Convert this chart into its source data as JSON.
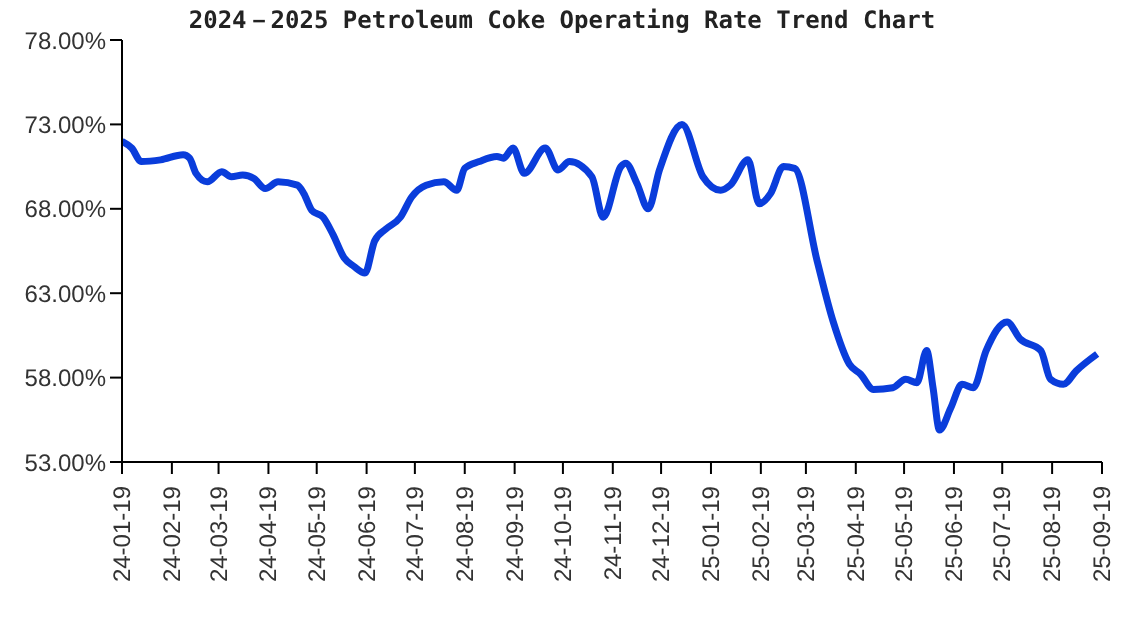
{
  "chart_data": {
    "type": "line",
    "title": "2024－2025 Petroleum Coke Operating Rate Trend Chart",
    "x": [
      "2024-01-19",
      "2024-01-25",
      "2024-01-31",
      "2024-02-12",
      "2024-02-26",
      "2024-03-01",
      "2024-03-05",
      "2024-03-12",
      "2024-03-21",
      "2024-03-27",
      "2024-04-03",
      "2024-04-10",
      "2024-04-17",
      "2024-04-25",
      "2024-05-07",
      "2024-05-11",
      "2024-05-16",
      "2024-05-23",
      "2024-05-29",
      "2024-06-05",
      "2024-06-11",
      "2024-06-18",
      "2024-06-24",
      "2024-07-01",
      "2024-07-10",
      "2024-07-17",
      "2024-07-26",
      "2024-08-06",
      "2024-08-14",
      "2024-08-19",
      "2024-08-28",
      "2024-09-08",
      "2024-09-12",
      "2024-09-18",
      "2024-09-25",
      "2024-10-08",
      "2024-10-16",
      "2024-10-23",
      "2024-11-06",
      "2024-11-13",
      "2024-11-24",
      "2024-11-27",
      "2024-12-04",
      "2024-12-11",
      "2024-12-18",
      "2025-01-01",
      "2025-01-14",
      "2025-01-25",
      "2025-01-31",
      "2025-02-11",
      "2025-02-18",
      "2025-02-25",
      "2025-03-05",
      "2025-03-12",
      "2025-03-26",
      "2025-04-05",
      "2025-04-15",
      "2025-04-22",
      "2025-04-30",
      "2025-05-12",
      "2025-05-20",
      "2025-05-27",
      "2025-06-02",
      "2025-06-06",
      "2025-06-10",
      "2025-06-17",
      "2025-06-24",
      "2025-07-01",
      "2025-07-09",
      "2025-07-22",
      "2025-07-30",
      "2025-08-12",
      "2025-08-18",
      "2025-08-26",
      "2025-09-03",
      "2025-09-16"
    ],
    "series": [
      {
        "color": "#0a3ddb",
        "values": [
          72.0,
          71.6,
          70.8,
          70.9,
          71.2,
          71.0,
          70.1,
          69.6,
          70.2,
          69.9,
          70.0,
          69.8,
          69.2,
          69.6,
          69.4,
          68.9,
          67.9,
          67.5,
          66.5,
          65.1,
          64.6,
          64.2,
          66.1,
          66.8,
          67.5,
          68.7,
          69.4,
          69.6,
          69.1,
          70.4,
          70.8,
          71.1,
          71.0,
          71.6,
          70.1,
          71.6,
          70.3,
          70.8,
          69.9,
          67.5,
          70.5,
          70.7,
          69.5,
          68.0,
          70.3,
          73.0,
          69.9,
          69.1,
          69.4,
          70.9,
          68.3,
          68.9,
          70.5,
          70.4,
          64.9,
          61.3,
          58.8,
          58.2,
          57.3,
          57.4,
          57.9,
          57.7,
          59.6,
          57.4,
          54.9,
          56.2,
          57.6,
          57.4,
          59.6,
          61.3,
          60.3,
          59.6,
          57.9,
          57.6,
          58.4,
          59.4
        ]
      }
    ],
    "xlim": [
      "2024-01-19",
      "2025-09-19"
    ],
    "xticks": [
      {
        "value": "2024-01-19",
        "label": "24-01-19"
      },
      {
        "value": "2024-02-19",
        "label": "24-02-19"
      },
      {
        "value": "2024-03-19",
        "label": "24-03-19"
      },
      {
        "value": "2024-04-19",
        "label": "24-04-19"
      },
      {
        "value": "2024-05-19",
        "label": "24-05-19"
      },
      {
        "value": "2024-06-19",
        "label": "24-06-19"
      },
      {
        "value": "2024-07-19",
        "label": "24-07-19"
      },
      {
        "value": "2024-08-19",
        "label": "24-08-19"
      },
      {
        "value": "2024-09-19",
        "label": "24-09-19"
      },
      {
        "value": "2024-10-19",
        "label": "24-10-19"
      },
      {
        "value": "2024-11-19",
        "label": "24-11-19"
      },
      {
        "value": "2024-12-19",
        "label": "24-12-19"
      },
      {
        "value": "2025-01-19",
        "label": "25-01-19"
      },
      {
        "value": "2025-02-19",
        "label": "25-02-19"
      },
      {
        "value": "2025-03-19",
        "label": "25-03-19"
      },
      {
        "value": "2025-04-19",
        "label": "25-04-19"
      },
      {
        "value": "2025-05-19",
        "label": "25-05-19"
      },
      {
        "value": "2025-06-19",
        "label": "25-06-19"
      },
      {
        "value": "2025-07-19",
        "label": "25-07-19"
      },
      {
        "value": "2025-08-19",
        "label": "25-08-19"
      },
      {
        "value": "2025-09-19",
        "label": "25-09-19"
      }
    ],
    "ylim": [
      53,
      78
    ],
    "yticks": [
      {
        "value": 53,
        "label": "53.00%"
      },
      {
        "value": 58,
        "label": "58.00%"
      },
      {
        "value": 63,
        "label": "63.00%"
      },
      {
        "value": 68,
        "label": "68.00%"
      },
      {
        "value": 73,
        "label": "73.00%"
      },
      {
        "value": 78,
        "label": "78.00%"
      }
    ],
    "grid": false,
    "legend": false,
    "marker": "none",
    "line_style": "solid"
  }
}
